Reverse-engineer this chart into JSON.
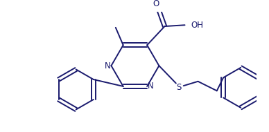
{
  "background_color": "#ffffff",
  "line_color": "#1a1a6e",
  "line_width": 1.4,
  "figsize": [
    3.88,
    1.91
  ],
  "dpi": 100,
  "xlim": [
    0,
    388
  ],
  "ylim": [
    0,
    191
  ]
}
